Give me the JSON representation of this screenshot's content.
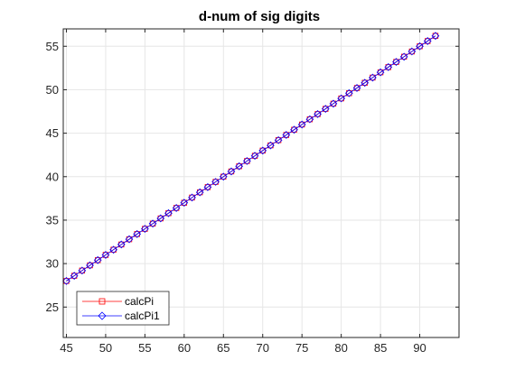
{
  "chart_data": {
    "type": "line",
    "title": "d-num of sig digits",
    "xlabel": "",
    "ylabel": "",
    "xlim": [
      44.6,
      95
    ],
    "ylim": [
      21.5,
      57
    ],
    "xticks": [
      45,
      50,
      55,
      60,
      65,
      70,
      75,
      80,
      85,
      90
    ],
    "yticks": [
      25,
      30,
      35,
      40,
      45,
      50,
      55
    ],
    "grid": true,
    "legend_position": "bottom-left",
    "colors": {
      "calcPi": "#ff0000",
      "calcPi1": "#0000ff"
    },
    "series": [
      {
        "name": "calcPi",
        "marker": "square",
        "x": [
          45,
          46,
          47,
          48,
          49,
          50,
          51,
          52,
          53,
          54,
          55,
          56,
          57,
          58,
          59,
          60,
          61,
          62,
          63,
          64,
          65,
          66,
          67,
          68,
          69,
          70,
          71,
          72,
          73,
          74,
          75,
          76,
          77,
          78,
          79,
          80,
          81,
          82,
          83,
          84,
          85,
          86,
          87,
          88,
          89,
          90,
          91,
          92
        ],
        "y": [
          28,
          28.6,
          29.2,
          29.8,
          30.4,
          31,
          31.6,
          32.2,
          32.8,
          33.4,
          34,
          34.6,
          35.2,
          35.8,
          36.4,
          37,
          37.6,
          38.2,
          38.8,
          39.4,
          40,
          40.6,
          41.2,
          41.8,
          42.4,
          43,
          43.6,
          44.2,
          44.8,
          45.4,
          46,
          46.6,
          47.2,
          47.8,
          48.4,
          49,
          49.6,
          50.2,
          50.8,
          51.4,
          52,
          52.6,
          53.2,
          53.8,
          54.4,
          55,
          55.6,
          56.2
        ]
      },
      {
        "name": "calcPi1",
        "marker": "diamond",
        "x": [
          45,
          46,
          47,
          48,
          49,
          50,
          51,
          52,
          53,
          54,
          55,
          56,
          57,
          58,
          59,
          60,
          61,
          62,
          63,
          64,
          65,
          66,
          67,
          68,
          69,
          70,
          71,
          72,
          73,
          74,
          75,
          76,
          77,
          78,
          79,
          80,
          81,
          82,
          83,
          84,
          85,
          86,
          87,
          88,
          89,
          90,
          91,
          92
        ],
        "y": [
          28,
          28.6,
          29.2,
          29.8,
          30.4,
          31,
          31.6,
          32.2,
          32.8,
          33.4,
          34,
          34.6,
          35.2,
          35.8,
          36.4,
          37,
          37.6,
          38.2,
          38.8,
          39.4,
          40,
          40.6,
          41.2,
          41.8,
          42.4,
          43,
          43.6,
          44.2,
          44.8,
          45.4,
          46,
          46.6,
          47.2,
          47.8,
          48.4,
          49,
          49.6,
          50.2,
          50.8,
          51.4,
          52,
          52.6,
          53.2,
          53.8,
          54.4,
          55,
          55.6,
          56.2
        ]
      }
    ]
  }
}
